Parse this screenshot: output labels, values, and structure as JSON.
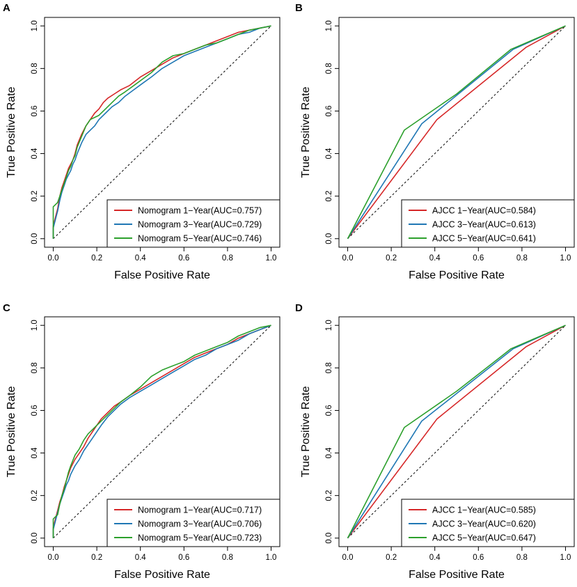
{
  "figure": {
    "panels": [
      "A",
      "B",
      "C",
      "D"
    ]
  },
  "chart_data": [
    {
      "panel": "A",
      "type": "line",
      "xlabel": "False Positive Rate",
      "ylabel": "True Positive Rate",
      "xlim": [
        0,
        1
      ],
      "ylim": [
        0,
        1
      ],
      "xticks": [
        "0.0",
        "0.2",
        "0.4",
        "0.6",
        "0.8",
        "1.0"
      ],
      "yticks": [
        "0.0",
        "0.2",
        "0.4",
        "0.6",
        "0.8",
        "1.0"
      ],
      "legend_position": "bottom-right",
      "diagonal_reference": true,
      "series": [
        {
          "name": "Nomogram 1−Year(AUC=0.757)",
          "color": "#d62728",
          "x": [
            0,
            0,
            0.01,
            0.02,
            0.03,
            0.04,
            0.05,
            0.06,
            0.07,
            0.08,
            0.09,
            0.1,
            0.11,
            0.13,
            0.15,
            0.17,
            0.19,
            0.21,
            0.23,
            0.25,
            0.28,
            0.31,
            0.35,
            0.4,
            0.45,
            0.5,
            0.55,
            0.6,
            0.65,
            0.7,
            0.75,
            0.8,
            0.85,
            0.9,
            0.95,
            1.0
          ],
          "y": [
            0,
            0.06,
            0.1,
            0.14,
            0.2,
            0.24,
            0.27,
            0.3,
            0.33,
            0.35,
            0.37,
            0.4,
            0.44,
            0.49,
            0.53,
            0.56,
            0.59,
            0.61,
            0.64,
            0.66,
            0.68,
            0.7,
            0.72,
            0.76,
            0.79,
            0.82,
            0.85,
            0.87,
            0.89,
            0.91,
            0.93,
            0.95,
            0.97,
            0.98,
            0.99,
            1.0
          ]
        },
        {
          "name": "Nomogram 3−Year(AUC=0.729)",
          "color": "#1f77b4",
          "x": [
            0,
            0,
            0.01,
            0.02,
            0.03,
            0.04,
            0.05,
            0.06,
            0.07,
            0.08,
            0.09,
            0.1,
            0.11,
            0.13,
            0.15,
            0.17,
            0.19,
            0.21,
            0.24,
            0.27,
            0.3,
            0.33,
            0.37,
            0.41,
            0.45,
            0.5,
            0.55,
            0.6,
            0.65,
            0.7,
            0.75,
            0.8,
            0.85,
            0.9,
            0.95,
            1.0
          ],
          "y": [
            0,
            0.05,
            0.09,
            0.13,
            0.18,
            0.22,
            0.25,
            0.28,
            0.3,
            0.32,
            0.35,
            0.37,
            0.4,
            0.45,
            0.49,
            0.51,
            0.53,
            0.56,
            0.59,
            0.62,
            0.64,
            0.67,
            0.7,
            0.73,
            0.76,
            0.8,
            0.83,
            0.86,
            0.88,
            0.9,
            0.92,
            0.94,
            0.96,
            0.97,
            0.99,
            1.0
          ]
        },
        {
          "name": "Nomogram 5−Year(AUC=0.746)",
          "color": "#2ca02c",
          "x": [
            0,
            0,
            0.01,
            0.02,
            0.03,
            0.04,
            0.05,
            0.06,
            0.07,
            0.08,
            0.09,
            0.1,
            0.11,
            0.13,
            0.15,
            0.17,
            0.19,
            0.21,
            0.24,
            0.27,
            0.3,
            0.33,
            0.37,
            0.41,
            0.45,
            0.5,
            0.55,
            0.6,
            0.65,
            0.7,
            0.75,
            0.8,
            0.85,
            0.9,
            0.95,
            1.0
          ],
          "y": [
            0,
            0.15,
            0.16,
            0.17,
            0.2,
            0.23,
            0.26,
            0.29,
            0.32,
            0.34,
            0.37,
            0.39,
            0.43,
            0.48,
            0.53,
            0.56,
            0.57,
            0.58,
            0.61,
            0.64,
            0.67,
            0.69,
            0.72,
            0.75,
            0.78,
            0.83,
            0.86,
            0.87,
            0.89,
            0.91,
            0.92,
            0.94,
            0.96,
            0.98,
            0.99,
            1.0
          ]
        }
      ]
    },
    {
      "panel": "B",
      "type": "line",
      "xlabel": "False Positive Rate",
      "ylabel": "True Positive Rate",
      "xlim": [
        0,
        1
      ],
      "ylim": [
        0,
        1
      ],
      "xticks": [
        "0.0",
        "0.2",
        "0.4",
        "0.6",
        "0.8",
        "1.0"
      ],
      "yticks": [
        "0.0",
        "0.2",
        "0.4",
        "0.6",
        "0.8",
        "1.0"
      ],
      "legend_position": "bottom-right",
      "diagonal_reference": true,
      "series": [
        {
          "name": "AJCC 1−Year(AUC=0.584)",
          "color": "#d62728",
          "x": [
            0,
            0.41,
            0.82,
            1.0
          ],
          "y": [
            0,
            0.56,
            0.9,
            1.0
          ]
        },
        {
          "name": "AJCC 3−Year(AUC=0.613)",
          "color": "#1f77b4",
          "x": [
            0,
            0.34,
            0.76,
            1.0
          ],
          "y": [
            0,
            0.54,
            0.89,
            1.0
          ]
        },
        {
          "name": "AJCC 5−Year(AUC=0.641)",
          "color": "#2ca02c",
          "x": [
            0,
            0.26,
            0.5,
            0.75,
            1.0
          ],
          "y": [
            0,
            0.51,
            0.68,
            0.89,
            1.0
          ]
        }
      ]
    },
    {
      "panel": "C",
      "type": "line",
      "xlabel": "False Positive Rate",
      "ylabel": "True Positive Rate",
      "xlim": [
        0,
        1
      ],
      "ylim": [
        0,
        1
      ],
      "xticks": [
        "0.0",
        "0.2",
        "0.4",
        "0.6",
        "0.8",
        "1.0"
      ],
      "yticks": [
        "0.0",
        "0.2",
        "0.4",
        "0.6",
        "0.8",
        "1.0"
      ],
      "legend_position": "bottom-right",
      "diagonal_reference": true,
      "series": [
        {
          "name": "Nomogram 1−Year(AUC=0.717)",
          "color": "#d62728",
          "x": [
            0,
            0,
            0.01,
            0.02,
            0.03,
            0.04,
            0.05,
            0.06,
            0.07,
            0.08,
            0.1,
            0.12,
            0.14,
            0.16,
            0.18,
            0.2,
            0.22,
            0.25,
            0.28,
            0.31,
            0.35,
            0.4,
            0.45,
            0.5,
            0.55,
            0.6,
            0.65,
            0.7,
            0.75,
            0.8,
            0.85,
            0.9,
            0.95,
            1.0
          ],
          "y": [
            0,
            0.05,
            0.09,
            0.13,
            0.17,
            0.2,
            0.24,
            0.27,
            0.3,
            0.33,
            0.37,
            0.4,
            0.43,
            0.47,
            0.5,
            0.53,
            0.56,
            0.59,
            0.62,
            0.64,
            0.67,
            0.7,
            0.73,
            0.76,
            0.79,
            0.82,
            0.85,
            0.87,
            0.89,
            0.91,
            0.94,
            0.96,
            0.98,
            1.0
          ]
        },
        {
          "name": "Nomogram 3−Year(AUC=0.706)",
          "color": "#1f77b4",
          "x": [
            0,
            0,
            0.01,
            0.02,
            0.03,
            0.04,
            0.05,
            0.06,
            0.07,
            0.08,
            0.1,
            0.12,
            0.14,
            0.16,
            0.18,
            0.2,
            0.22,
            0.25,
            0.28,
            0.31,
            0.35,
            0.4,
            0.45,
            0.5,
            0.55,
            0.6,
            0.65,
            0.7,
            0.75,
            0.8,
            0.85,
            0.9,
            0.95,
            1.0
          ],
          "y": [
            0,
            0.04,
            0.08,
            0.12,
            0.16,
            0.19,
            0.22,
            0.25,
            0.27,
            0.3,
            0.34,
            0.37,
            0.41,
            0.44,
            0.47,
            0.5,
            0.53,
            0.57,
            0.6,
            0.63,
            0.66,
            0.69,
            0.72,
            0.75,
            0.78,
            0.81,
            0.84,
            0.86,
            0.89,
            0.91,
            0.93,
            0.96,
            0.98,
            1.0
          ]
        },
        {
          "name": "Nomogram 5−Year(AUC=0.723)",
          "color": "#2ca02c",
          "x": [
            0,
            0,
            0.01,
            0.02,
            0.03,
            0.04,
            0.05,
            0.06,
            0.07,
            0.08,
            0.1,
            0.12,
            0.14,
            0.16,
            0.18,
            0.2,
            0.22,
            0.25,
            0.28,
            0.31,
            0.35,
            0.4,
            0.45,
            0.5,
            0.55,
            0.6,
            0.65,
            0.7,
            0.75,
            0.8,
            0.85,
            0.9,
            0.95,
            1.0
          ],
          "y": [
            0,
            0.09,
            0.1,
            0.11,
            0.16,
            0.2,
            0.23,
            0.27,
            0.31,
            0.34,
            0.39,
            0.42,
            0.46,
            0.49,
            0.51,
            0.53,
            0.55,
            0.58,
            0.61,
            0.64,
            0.67,
            0.71,
            0.76,
            0.79,
            0.81,
            0.83,
            0.86,
            0.88,
            0.9,
            0.92,
            0.95,
            0.97,
            0.99,
            1.0
          ]
        }
      ]
    },
    {
      "panel": "D",
      "type": "line",
      "xlabel": "False Positive Rate",
      "ylabel": "True Positive Rate",
      "xlim": [
        0,
        1
      ],
      "ylim": [
        0,
        1
      ],
      "xticks": [
        "0.0",
        "0.2",
        "0.4",
        "0.6",
        "0.8",
        "1.0"
      ],
      "yticks": [
        "0.0",
        "0.2",
        "0.4",
        "0.6",
        "0.8",
        "1.0"
      ],
      "legend_position": "bottom-right",
      "diagonal_reference": true,
      "series": [
        {
          "name": "AJCC 1−Year(AUC=0.585)",
          "color": "#d62728",
          "x": [
            0,
            0.41,
            0.82,
            1.0
          ],
          "y": [
            0,
            0.56,
            0.9,
            1.0
          ]
        },
        {
          "name": "AJCC 3−Year(AUC=0.620)",
          "color": "#1f77b4",
          "x": [
            0,
            0.34,
            0.76,
            1.0
          ],
          "y": [
            0,
            0.55,
            0.89,
            1.0
          ]
        },
        {
          "name": "AJCC 5−Year(AUC=0.647)",
          "color": "#2ca02c",
          "x": [
            0,
            0.26,
            0.5,
            0.75,
            1.0
          ],
          "y": [
            0,
            0.52,
            0.69,
            0.89,
            1.0
          ]
        }
      ]
    }
  ]
}
